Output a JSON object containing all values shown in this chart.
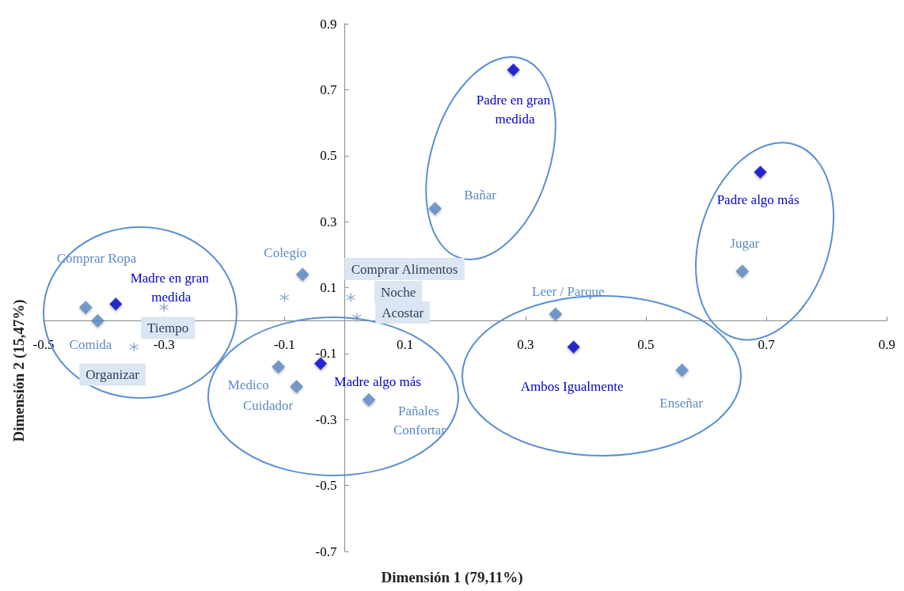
{
  "chart_data": {
    "type": "scatter",
    "xlabel": "Dimensión 1 (79,11%)",
    "ylabel": "Dimensión 2 (15,47%)",
    "xlim": [
      -0.5,
      0.9
    ],
    "xticks": [
      -0.5,
      -0.3,
      -0.1,
      0.1,
      0.3,
      0.5,
      0.7,
      0.9
    ],
    "ylim": [
      -0.7,
      0.9
    ],
    "yticks": [
      -0.7,
      -0.5,
      -0.3,
      -0.1,
      0.1,
      0.3,
      0.5,
      0.7,
      0.9
    ],
    "grid": false,
    "marker": "diamond",
    "series": [
      {
        "color": "#5a8ac6",
        "x": [
          -0.43,
          -0.41,
          -0.07,
          0.15,
          0.35,
          0.66,
          0.56,
          -0.11,
          -0.08,
          0.04
        ],
        "values": [
          0.04,
          0.0,
          0.14,
          0.34,
          0.02,
          0.15,
          -0.15,
          -0.14,
          -0.2,
          -0.24
        ]
      },
      {
        "color": "#0000cc",
        "x": [
          -0.38,
          -0.04,
          0.28,
          0.69,
          0.38
        ],
        "values": [
          0.05,
          -0.13,
          0.76,
          0.45,
          -0.08
        ]
      },
      {
        "color": "#6d8fc4",
        "marker": "cross",
        "x": [
          -0.1,
          0.01,
          0.02,
          -0.3,
          -0.35
        ],
        "values": [
          0.07,
          0.07,
          0.01,
          0.04,
          -0.08
        ]
      }
    ],
    "annotations": [
      "Comprar Ropa",
      {
        "text": "Comida",
        "x": -0.41,
        "y": 0.0
      },
      {
        "text": "Colegio",
        "x": -0.07,
        "y": 0.14
      },
      {
        "text": "Bañar",
        "x": 0.15,
        "y": 0.34
      },
      {
        "text": "Leer / Parque",
        "x": 0.35,
        "y": 0.02
      },
      {
        "text": "Jugar",
        "x": 0.66,
        "y": 0.15
      },
      {
        "text": "Enseñar",
        "x": 0.56,
        "y": -0.15
      },
      {
        "text": "Medico",
        "x": -0.11,
        "y": -0.14
      },
      {
        "text": "Cuidador",
        "x": -0.08,
        "y": -0.2
      },
      {
        "text": "Pañales",
        "x": 0.04,
        "y": -0.24
      },
      {
        "text": "Confortar",
        "x": 0.04,
        "y": -0.24
      },
      {
        "text": "Madre en gran medida",
        "x": -0.38,
        "y": 0.05
      },
      {
        "text": "Madre algo más",
        "x": -0.04,
        "y": -0.13
      },
      {
        "text": "Padre en gran medida",
        "x": 0.28,
        "y": 0.76
      },
      {
        "text": "Padre algo más",
        "x": 0.69,
        "y": 0.45
      },
      {
        "text": "Ambos Igualmente",
        "x": 0.38,
        "y": -0.08
      },
      "Comprar Alimentos",
      {
        "text": "Noche",
        "x": 0.01,
        "y": 0.07
      },
      {
        "text": "Acostar",
        "x": 0.02,
        "y": 0.01
      },
      {
        "text": "Tiempo",
        "x": -0.3,
        "y": 0.04
      },
      {
        "text": "Organizar",
        "x": -0.35,
        "y": -0.08
      }
    ]
  }
}
